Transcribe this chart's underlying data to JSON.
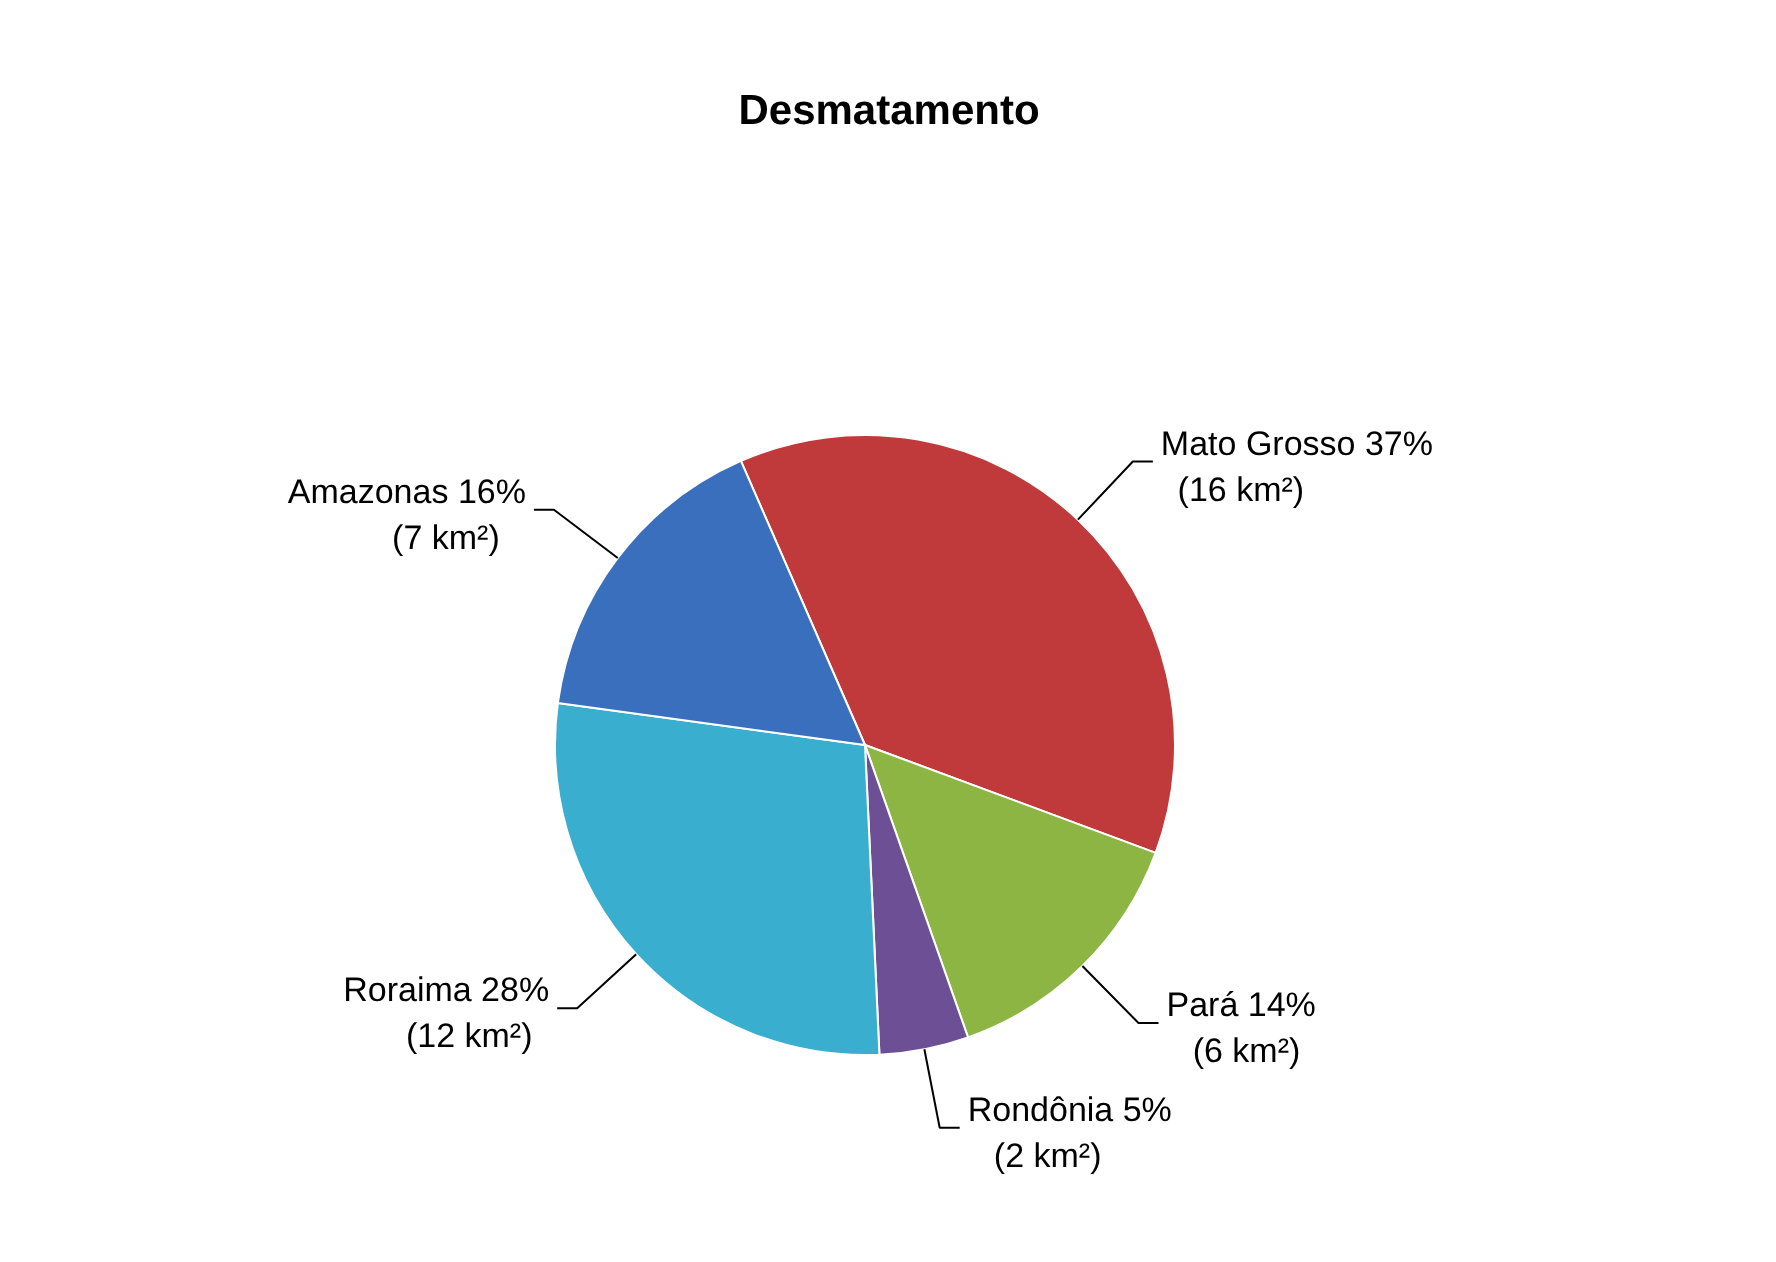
{
  "chart_data": {
    "type": "pie",
    "title": "Desmatamento",
    "categories": [
      "Mato Grosso",
      "Pará",
      "Rondônia",
      "Roraima",
      "Amazonas"
    ],
    "values": [
      16,
      6,
      2,
      12,
      7
    ],
    "value_labels": [
      " 37%\n(16 km²)",
      "14%\n(6 km²)",
      "5%\n(2 km²)",
      "28%\n(12 km²)",
      "16%\n(7 km²)"
    ],
    "colors": [
      "#c0393b",
      "#8db544",
      "#6d4f96",
      "#3aaecf",
      "#3a6fbd"
    ]
  }
}
